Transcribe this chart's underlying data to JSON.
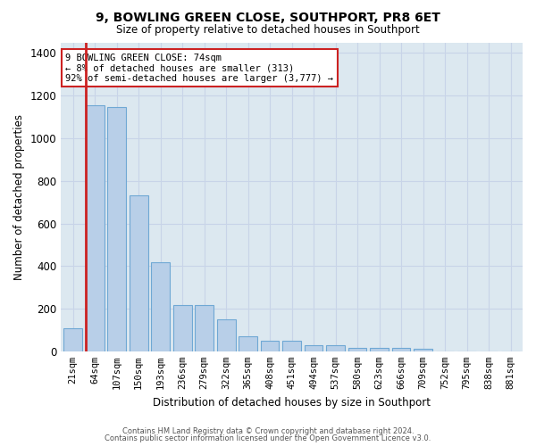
{
  "title": "9, BOWLING GREEN CLOSE, SOUTHPORT, PR8 6ET",
  "subtitle": "Size of property relative to detached houses in Southport",
  "xlabel": "Distribution of detached houses by size in Southport",
  "ylabel": "Number of detached properties",
  "categories": [
    "21sqm",
    "64sqm",
    "107sqm",
    "150sqm",
    "193sqm",
    "236sqm",
    "279sqm",
    "322sqm",
    "365sqm",
    "408sqm",
    "451sqm",
    "494sqm",
    "537sqm",
    "580sqm",
    "623sqm",
    "666sqm",
    "709sqm",
    "752sqm",
    "795sqm",
    "838sqm",
    "881sqm"
  ],
  "values": [
    110,
    1155,
    1148,
    730,
    418,
    215,
    215,
    150,
    70,
    50,
    50,
    30,
    30,
    18,
    15,
    15,
    10,
    0,
    0,
    0,
    0
  ],
  "bar_color": "#b8cfe8",
  "bar_edge_color": "#6fa8d4",
  "highlight_color": "#cc2222",
  "annotation_text_line1": "9 BOWLING GREEN CLOSE: 74sqm",
  "annotation_text_line2": "← 8% of detached houses are smaller (313)",
  "annotation_text_line3": "92% of semi-detached houses are larger (3,777) →",
  "annotation_box_color": "#ffffff",
  "annotation_border_color": "#cc2222",
  "ylim": [
    0,
    1450
  ],
  "yticks": [
    0,
    200,
    400,
    600,
    800,
    1000,
    1200,
    1400
  ],
  "grid_color": "#c8d4e8",
  "bg_color": "#dce8f0",
  "footer_line1": "Contains HM Land Registry data © Crown copyright and database right 2024.",
  "footer_line2": "Contains public sector information licensed under the Open Government Licence v3.0."
}
